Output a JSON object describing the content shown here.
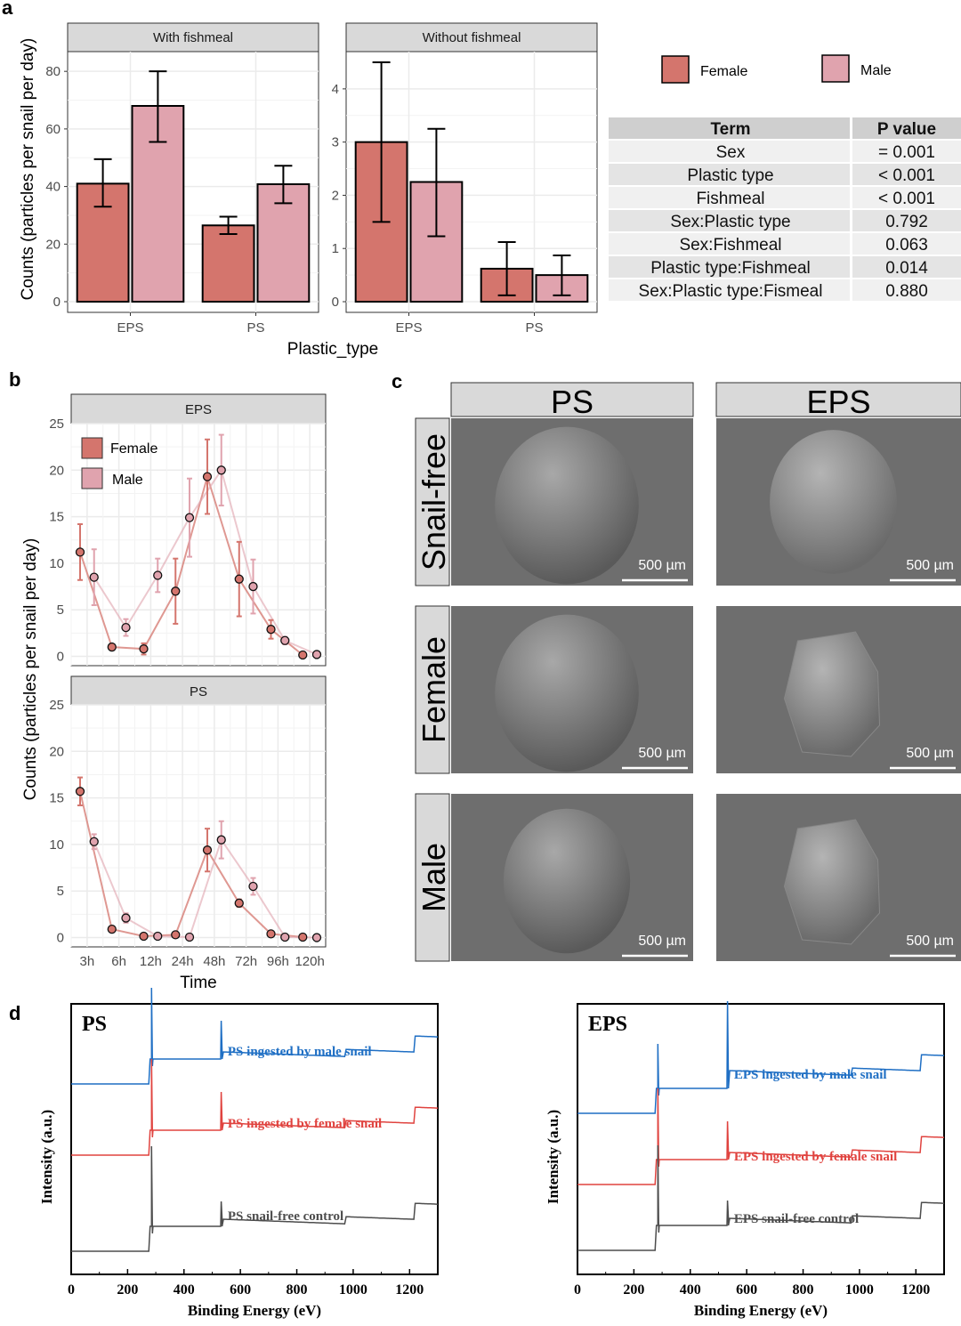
{
  "panels": {
    "a": "a",
    "b": "b",
    "c": "c",
    "d": "d"
  },
  "colors": {
    "female": "#d4756d",
    "male": "#e0a3ae",
    "strip": "#d9d9d9",
    "blue": "#1f6fc4",
    "red": "#e0433f",
    "gray": "#4d4d4d"
  },
  "chart_data": [
    {
      "id": "a-with",
      "type": "bar",
      "title": "With fishmeal",
      "categories": [
        "EPS",
        "PS"
      ],
      "series": [
        {
          "name": "Female",
          "values": [
            41,
            26.5
          ],
          "err_low": [
            33,
            23.5
          ],
          "err_high": [
            49.5,
            29.5
          ]
        },
        {
          "name": "Male",
          "values": [
            68,
            40.8
          ],
          "err_low": [
            55.5,
            34.2
          ],
          "err_high": [
            80,
            47.2
          ]
        }
      ],
      "ylim": [
        0,
        85
      ],
      "yticks": [
        0,
        20,
        40,
        60,
        80
      ],
      "ylabel": "Counts (particles per snail per day)",
      "xlabel": "Plastic_type"
    },
    {
      "id": "a-without",
      "type": "bar",
      "title": "Without fishmeal",
      "categories": [
        "EPS",
        "PS"
      ],
      "series": [
        {
          "name": "Female",
          "values": [
            3.0,
            0.62
          ],
          "err_low": [
            1.5,
            0.12
          ],
          "err_high": [
            4.5,
            1.12
          ]
        },
        {
          "name": "Male",
          "values": [
            2.25,
            0.5
          ],
          "err_low": [
            1.23,
            0.12
          ],
          "err_high": [
            3.25,
            0.87
          ]
        }
      ],
      "ylim": [
        0,
        4.6
      ],
      "yticks": [
        0,
        1,
        2,
        3,
        4
      ]
    },
    {
      "id": "a-table",
      "type": "table",
      "legend": [
        "Female",
        "Male"
      ],
      "columns": [
        "Term",
        "P value"
      ],
      "rows": [
        [
          "Sex",
          "= 0.001"
        ],
        [
          "Plastic type",
          "< 0.001"
        ],
        [
          "Fishmeal",
          "< 0.001"
        ],
        [
          "Sex:Plastic type",
          "0.792"
        ],
        [
          "Sex:Fishmeal",
          "0.063"
        ],
        [
          "Plastic type:Fishmeal",
          "0.014"
        ],
        [
          "Sex:Plastic type:Fismeal",
          "0.880"
        ]
      ]
    },
    {
      "id": "b-eps",
      "type": "line",
      "title": "EPS",
      "x": [
        "3h",
        "6h",
        "12h",
        "24h",
        "48h",
        "72h",
        "96h",
        "120h"
      ],
      "series": [
        {
          "name": "Female",
          "values": [
            11.2,
            1.0,
            0.8,
            7.0,
            19.3,
            8.3,
            2.9,
            0.15
          ],
          "err": [
            3.0,
            0.3,
            0.6,
            3.5,
            4.0,
            4.0,
            1.0,
            0.1
          ]
        },
        {
          "name": "Male",
          "values": [
            8.5,
            3.1,
            8.7,
            14.9,
            20.0,
            7.5,
            1.7,
            0.2
          ],
          "err": [
            3.0,
            0.9,
            1.8,
            4.2,
            3.8,
            2.9,
            0.4,
            0.1
          ]
        }
      ],
      "ylim": [
        -1,
        25
      ],
      "yticks": [
        0,
        5,
        10,
        15,
        20,
        25
      ],
      "legend": [
        "Female",
        "Male"
      ],
      "legend_position": "top-left"
    },
    {
      "id": "b-ps",
      "type": "line",
      "title": "PS",
      "x": [
        "3h",
        "6h",
        "12h",
        "24h",
        "48h",
        "72h",
        "96h",
        "120h"
      ],
      "series": [
        {
          "name": "Female",
          "values": [
            15.7,
            0.9,
            0.15,
            0.3,
            9.4,
            3.7,
            0.4,
            0.05
          ],
          "err": [
            1.5,
            0.2,
            0.1,
            0.1,
            2.3,
            0.4,
            0.2,
            0.05
          ]
        },
        {
          "name": "Male",
          "values": [
            10.3,
            2.1,
            0.15,
            0.05,
            10.5,
            5.5,
            0.05,
            0.0
          ],
          "err": [
            0.8,
            0.5,
            0.1,
            0.05,
            2.0,
            0.9,
            0.05,
            0.0
          ]
        }
      ],
      "ylim": [
        -1,
        25
      ],
      "yticks": [
        0,
        5,
        10,
        15,
        20,
        25
      ],
      "ylabel": "Counts (particles per snail per day)",
      "xlabel": "Time"
    },
    {
      "id": "d-ps",
      "type": "line",
      "title": "PS",
      "xlabel": "Binding Energy (eV)",
      "ylabel": "Intensity (a.u.)",
      "xlim": [
        0,
        1300
      ],
      "xticks": [
        0,
        200,
        400,
        600,
        800,
        1000,
        1200
      ],
      "series": [
        {
          "name": "PS ingested by male snail",
          "color": "blue"
        },
        {
          "name": "PS ingested by female snail",
          "color": "red"
        },
        {
          "name": "PS snail-free control",
          "color": "gray"
        }
      ],
      "peaks_eV": [
        285,
        532,
        975,
        1225
      ]
    },
    {
      "id": "d-eps",
      "type": "line",
      "title": "EPS",
      "xlabel": "Binding Energy (eV)",
      "ylabel": "Intensity (a.u.)",
      "xlim": [
        0,
        1300
      ],
      "xticks": [
        0,
        200,
        400,
        600,
        800,
        1000,
        1200
      ],
      "series": [
        {
          "name": "EPS ingested by male snail",
          "color": "blue"
        },
        {
          "name": "EPS ingested by female snail",
          "color": "red"
        },
        {
          "name": "EPS snail-free control",
          "color": "gray"
        }
      ],
      "peaks_eV": [
        285,
        532,
        975,
        1225
      ]
    }
  ],
  "sem": {
    "columns": [
      "PS",
      "EPS"
    ],
    "rows": [
      "Snail-free",
      "Female",
      "Male"
    ],
    "scale_bar": "500 µm"
  }
}
